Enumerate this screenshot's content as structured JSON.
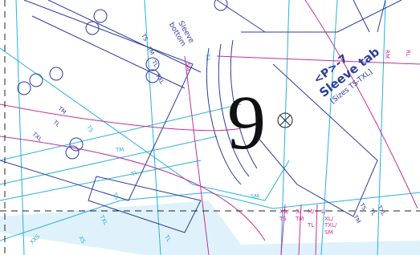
{
  "page_number": "9",
  "piece": {
    "id": "<P>-7",
    "name": "Sleeve tab",
    "sizes": "[Sizes TS-TXL]"
  },
  "note": [
    "Sleeve",
    "bottom"
  ],
  "size_labels": [
    "TS",
    "TM",
    "TL",
    "TXL",
    "TS",
    "TM",
    "TL",
    "TXL",
    "SM",
    "TS",
    "TM",
    "TL",
    "TS",
    "TXL",
    "SM",
    "XS/",
    "TS",
    "S/",
    "TM",
    "M/",
    "L/",
    "TL",
    "XL/",
    "TXL/",
    "SM",
    "RM",
    "RL",
    "TS",
    "TL",
    "TM",
    "TXL",
    "XXS",
    "XS",
    "TL"
  ]
}
